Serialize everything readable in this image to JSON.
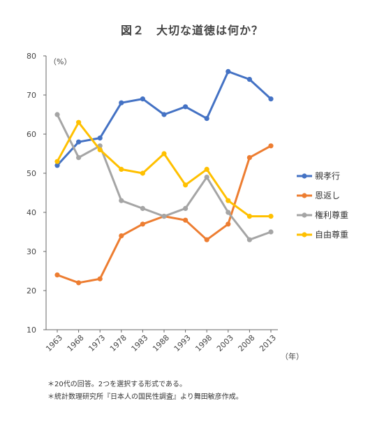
{
  "chart_data": {
    "type": "line",
    "title": "図２　大切な道徳は何か？",
    "ylabel": "（%）",
    "xlabel": "（年）",
    "ylim": [
      10,
      80
    ],
    "yticks": [
      10,
      20,
      30,
      40,
      50,
      60,
      70,
      80
    ],
    "grid": false,
    "legend_position": "right",
    "x": [
      "1963",
      "1968",
      "1973",
      "1978",
      "1983",
      "1988",
      "1993",
      "1998",
      "2003",
      "2008",
      "2013"
    ],
    "series": [
      {
        "name": "親孝行",
        "color": "#4472c4",
        "values": [
          52,
          58,
          59,
          68,
          69,
          65,
          67,
          64,
          76,
          74,
          69
        ]
      },
      {
        "name": "恩返し",
        "color": "#ed7d31",
        "values": [
          24,
          22,
          23,
          34,
          37,
          39,
          38,
          33,
          37,
          54,
          57
        ]
      },
      {
        "name": "権利尊重",
        "color": "#a5a5a5",
        "values": [
          65,
          54,
          57,
          43,
          41,
          39,
          41,
          49,
          40,
          33,
          35
        ]
      },
      {
        "name": "自由尊重",
        "color": "#ffc000",
        "values": [
          53,
          63,
          56,
          51,
          50,
          55,
          47,
          51,
          43,
          39,
          39
        ]
      }
    ]
  },
  "notes": [
    "＊20代の回答。2つを選択する形式である。",
    "＊統計数理研究所『日本人の国民性調査』より舞田敏彦作成。"
  ]
}
